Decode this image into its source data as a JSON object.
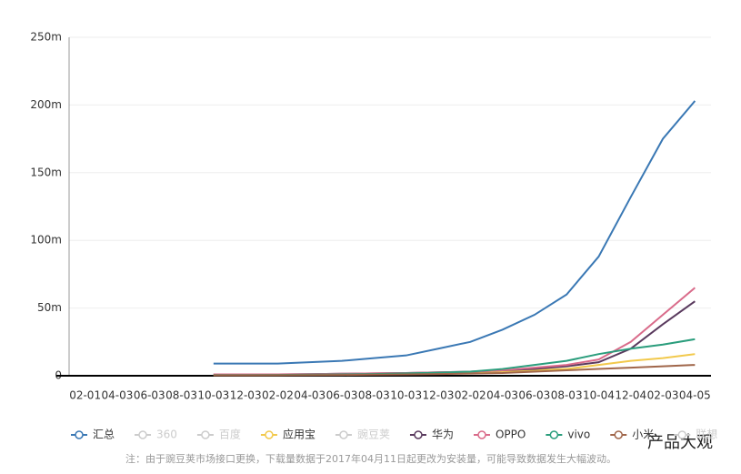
{
  "chart_data": {
    "type": "line",
    "categories": [
      "02-01",
      "04-03",
      "06-03",
      "08-03",
      "10-03",
      "12-03",
      "02-02",
      "04-03",
      "06-03",
      "08-03",
      "10-03",
      "12-03",
      "02-02",
      "04-03",
      "06-03",
      "08-03",
      "10-04",
      "12-04",
      "02-03",
      "04-05"
    ],
    "ylim": [
      0,
      250
    ],
    "yticks": [
      0,
      {
        "value": 50,
        "label": "50m"
      },
      {
        "value": 100,
        "label": "100m"
      },
      {
        "value": 150,
        "label": "150m"
      },
      {
        "value": 200,
        "label": "200m"
      },
      {
        "value": 250,
        "label": "250m"
      }
    ],
    "grid": true,
    "series": [
      {
        "name": "汇总",
        "color": "#3a78b4",
        "visible": true,
        "values": [
          null,
          null,
          null,
          null,
          9,
          9,
          9,
          10,
          11,
          13,
          15,
          20,
          25,
          34,
          45,
          60,
          88,
          132,
          175,
          203
        ]
      },
      {
        "name": "360",
        "color": "#cccccc",
        "visible": false
      },
      {
        "name": "百度",
        "color": "#cccccc",
        "visible": false
      },
      {
        "name": "应用宝",
        "color": "#f2c94c",
        "visible": true,
        "values": [
          null,
          null,
          null,
          null,
          0.5,
          0.5,
          0.6,
          0.8,
          1,
          1.3,
          1.6,
          2,
          2.5,
          3,
          4,
          5,
          8,
          11,
          13,
          16
        ]
      },
      {
        "name": "豌豆荚",
        "color": "#cccccc",
        "visible": false
      },
      {
        "name": "华为",
        "color": "#5a3a5e",
        "visible": true,
        "values": [
          null,
          null,
          null,
          null,
          1,
          1,
          1,
          1.2,
          1.5,
          1.8,
          2,
          2.5,
          3,
          4,
          5,
          7,
          10,
          20,
          38,
          55
        ]
      },
      {
        "name": "OPPO",
        "color": "#d96b8a",
        "visible": true,
        "values": [
          null,
          null,
          null,
          null,
          1,
          1,
          1,
          1.2,
          1.5,
          1.8,
          2,
          2.5,
          3,
          4,
          6,
          8,
          12,
          25,
          45,
          65
        ]
      },
      {
        "name": "vivo",
        "color": "#2a9d7c",
        "visible": true,
        "values": [
          null,
          null,
          null,
          null,
          0.5,
          0.5,
          0.6,
          0.8,
          1,
          1.3,
          1.8,
          2.3,
          3,
          5,
          8,
          11,
          16,
          20,
          23,
          27
        ]
      },
      {
        "name": "小米",
        "color": "#a0664a",
        "visible": true,
        "values": [
          null,
          null,
          null,
          null,
          0.3,
          0.3,
          0.4,
          0.5,
          0.6,
          0.8,
          1,
          1.3,
          1.6,
          2,
          3,
          4,
          5,
          6,
          7,
          8
        ]
      },
      {
        "name": "联想",
        "color": "#cccccc",
        "visible": false
      }
    ],
    "note": "注：由于豌豆荚市场接口更换，下载量数据于2017年04月11日起更改为安装量，可能导致数据发生大幅波动。",
    "brand": "产品大观"
  }
}
